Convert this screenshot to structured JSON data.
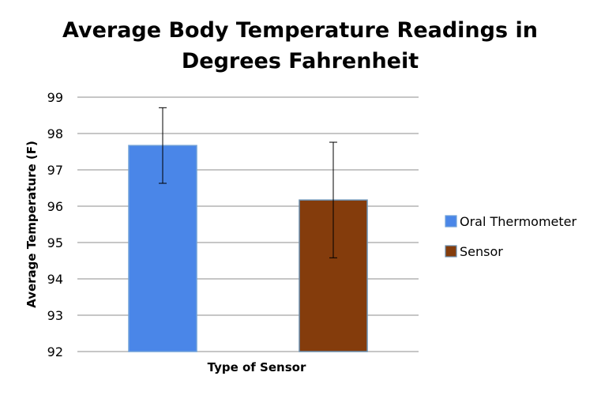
{
  "chart_data": {
    "type": "bar",
    "title_lines": [
      "Average Body Temperature Readings in",
      "Degrees Fahrenheit"
    ],
    "xlabel": "Type of Sensor",
    "ylabel": "Average Temperature (F)",
    "ylim": [
      92,
      99
    ],
    "yticks": [
      "92",
      "93",
      "94",
      "95",
      "96",
      "97",
      "98",
      "99"
    ],
    "grid": true,
    "legend_position": "right",
    "series": [
      {
        "name": "Oral Thermometer",
        "value": 97.67,
        "error_low": 96.63,
        "error_high": 98.71,
        "color": "#4a86e8",
        "border": "#6fa0d8"
      },
      {
        "name": "Sensor",
        "value": 96.17,
        "error_low": 94.58,
        "error_high": 97.76,
        "color": "#843c0c",
        "border": "#6a8fb0"
      }
    ]
  }
}
